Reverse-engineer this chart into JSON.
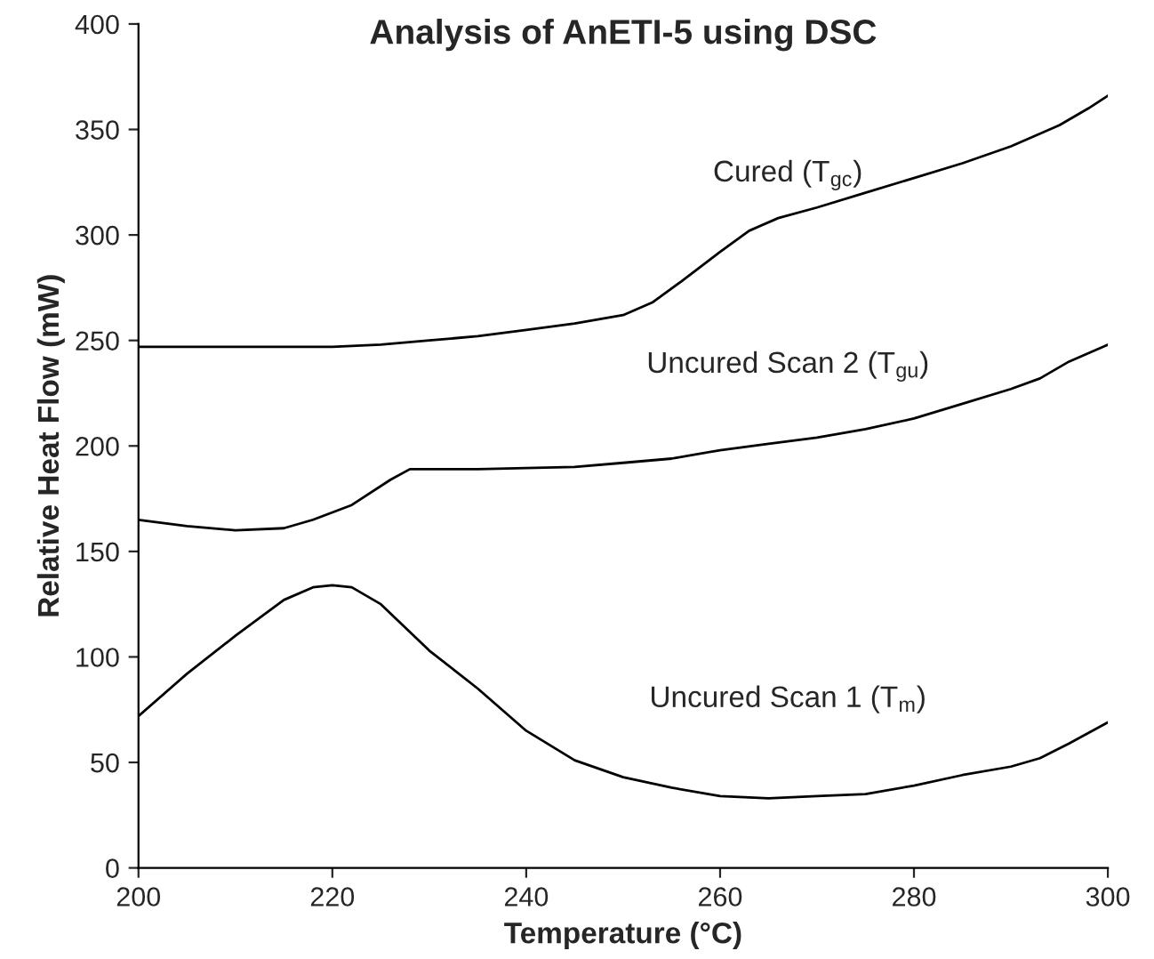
{
  "chart_data": {
    "type": "line",
    "title": "Analysis of AnETI-5 using DSC",
    "xlabel": "Temperature (°C)",
    "ylabel": "Relative Heat Flow (mW)",
    "xlim": [
      200,
      300
    ],
    "xticks": [
      200,
      220,
      240,
      260,
      280,
      300
    ],
    "ylim": [
      0,
      400
    ],
    "yticks": [
      0,
      50,
      100,
      150,
      200,
      250,
      300,
      350,
      400
    ],
    "grid": false,
    "legend": false,
    "series": [
      {
        "name": "Cured (T$_{gc}$)",
        "color": "#000000",
        "x": [
          200,
          210,
          220,
          225,
          230,
          235,
          240,
          245,
          250,
          253,
          256,
          260,
          263,
          266,
          270,
          275,
          280,
          285,
          290,
          295,
          298,
          300
        ],
        "values": [
          247,
          247,
          247,
          248,
          250,
          252,
          255,
          258,
          262,
          268,
          278,
          292,
          302,
          308,
          313,
          320,
          327,
          334,
          342,
          352,
          360,
          366
        ]
      },
      {
        "name": "Uncured Scan 2 (T$_{gu}$)",
        "color": "#000000",
        "x": [
          200,
          205,
          210,
          215,
          218,
          222,
          226,
          228,
          235,
          245,
          250,
          255,
          260,
          265,
          270,
          275,
          280,
          285,
          290,
          293,
          296,
          300
        ],
        "values": [
          165,
          162,
          160,
          161,
          165,
          172,
          184,
          189,
          189,
          190,
          192,
          194,
          198,
          201,
          204,
          208,
          213,
          220,
          227,
          232,
          240,
          248
        ]
      },
      {
        "name": "Uncured Scan 1 (T$_{m}$)",
        "color": "#000000",
        "x": [
          200,
          205,
          210,
          215,
          218,
          220,
          222,
          225,
          230,
          235,
          240,
          245,
          250,
          255,
          260,
          265,
          270,
          275,
          280,
          285,
          290,
          293,
          296,
          300
        ],
        "values": [
          72,
          92,
          110,
          127,
          133,
          134,
          133,
          125,
          103,
          85,
          65,
          51,
          43,
          38,
          34,
          33,
          34,
          35,
          39,
          44,
          48,
          52,
          59,
          69
        ]
      }
    ]
  }
}
